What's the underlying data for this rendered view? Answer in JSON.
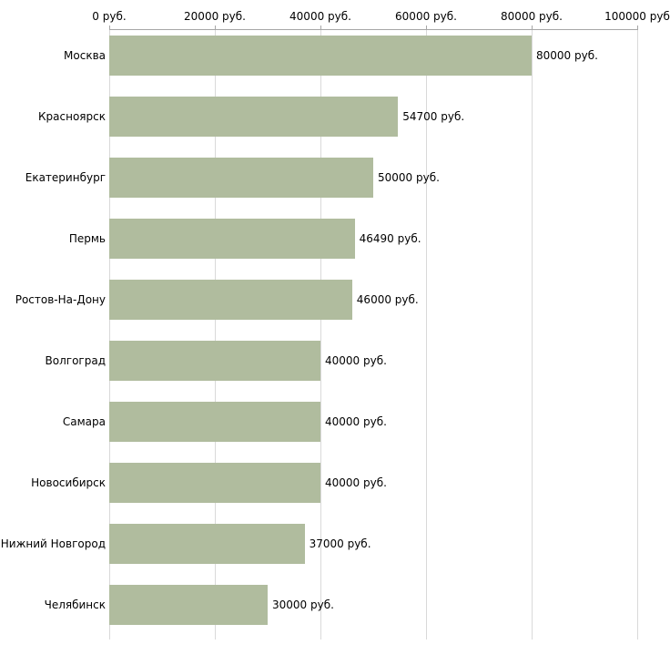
{
  "chart_data": {
    "type": "bar",
    "orientation": "horizontal",
    "title": "",
    "xlabel": "",
    "ylabel": "",
    "categories": [
      "Москва",
      "Красноярск",
      "Екатеринбург",
      "Пермь",
      "Ростов-На-Дону",
      "Волгоград",
      "Самара",
      "Новосибирск",
      "Нижний Новгород",
      "Челябинск"
    ],
    "values": [
      80000,
      54700,
      50000,
      46490,
      46000,
      40000,
      40000,
      40000,
      37000,
      30000
    ],
    "value_labels": [
      "80000 руб.",
      "54700 руб.",
      "50000 руб.",
      "46490 руб.",
      "46000 руб.",
      "40000 руб.",
      "40000 руб.",
      "40000 руб.",
      "37000 руб.",
      "30000 руб."
    ],
    "x_ticks": [
      {
        "value": 0,
        "label": "0 руб."
      },
      {
        "value": 20000,
        "label": "20000 руб."
      },
      {
        "value": 40000,
        "label": "40000 руб."
      },
      {
        "value": 60000,
        "label": "60000 руб."
      },
      {
        "value": 80000,
        "label": "80000 руб."
      },
      {
        "value": 100000,
        "label": "100000 руб"
      }
    ],
    "xlim": [
      0,
      100000
    ],
    "grid": true,
    "axis_position": "top",
    "legend": "none",
    "colors": {
      "bar": "#b0bc9e",
      "gridline": "#d9d9d9",
      "axis_line": "#a6a6a6",
      "text": "#000000",
      "background": "#ffffff"
    }
  }
}
